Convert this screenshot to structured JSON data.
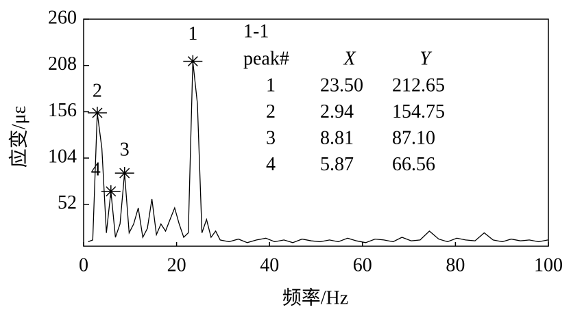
{
  "chart_data": {
    "type": "line",
    "x_label": "频率/Hz",
    "y_label": "应变/με",
    "xlim": [
      0,
      100
    ],
    "xticks": [
      0,
      20,
      40,
      60,
      80,
      100
    ],
    "ylim": [
      5,
      260
    ],
    "yticks": [
      52,
      104,
      156,
      208,
      260
    ],
    "color": "#000000",
    "x": [
      0.98,
      1.96,
      2.94,
      3.92,
      4.9,
      5.87,
      6.85,
      7.83,
      8.81,
      9.79,
      10.77,
      11.75,
      12.73,
      13.71,
      14.69,
      15.66,
      16.64,
      17.62,
      18.6,
      19.58,
      20.56,
      21.54,
      22.52,
      23.5,
      24.48,
      25.46,
      26.44,
      27.42,
      28.4,
      29.38,
      31.3,
      33.3,
      35.2,
      37.2,
      39.2,
      41.1,
      43.1,
      45.0,
      47.0,
      49.0,
      50.9,
      52.9,
      54.8,
      56.8,
      58.7,
      60.7,
      62.7,
      64.6,
      66.6,
      68.5,
      70.5,
      72.4,
      74.4,
      76.4,
      78.3,
      80.3,
      82.2,
      84.2,
      86.2,
      88.1,
      90.1,
      92.0,
      94.0,
      95.9,
      97.9,
      99.9
    ],
    "values": [
      10,
      12,
      154.75,
      115,
      20,
      66.56,
      15,
      30,
      87.1,
      20,
      30,
      48,
      15,
      25,
      58,
      18,
      30,
      22,
      35,
      48,
      30,
      15,
      20,
      212.65,
      165,
      20,
      35,
      15,
      22,
      12,
      10,
      13,
      9,
      12,
      14,
      10,
      12,
      9,
      13,
      11,
      10,
      12,
      10,
      14,
      11,
      9,
      13,
      12,
      10,
      15,
      11,
      12,
      22,
      13,
      10,
      14,
      12,
      11,
      20,
      12,
      10,
      13,
      11,
      12,
      10,
      12
    ],
    "annotation_title": "1-1",
    "table_headers": [
      "peak#",
      "X",
      "Y"
    ],
    "peaks": {
      "names": [
        "1",
        "2",
        "3",
        "4"
      ],
      "x": [
        23.5,
        2.94,
        8.81,
        5.87
      ],
      "x_labels": [
        "23.50",
        "2.94",
        "8.81",
        "5.87"
      ],
      "y": [
        212.65,
        154.75,
        87.1,
        66.56
      ],
      "y_labels": [
        "212.65",
        "154.75",
        "87.10",
        "66.56"
      ]
    }
  }
}
